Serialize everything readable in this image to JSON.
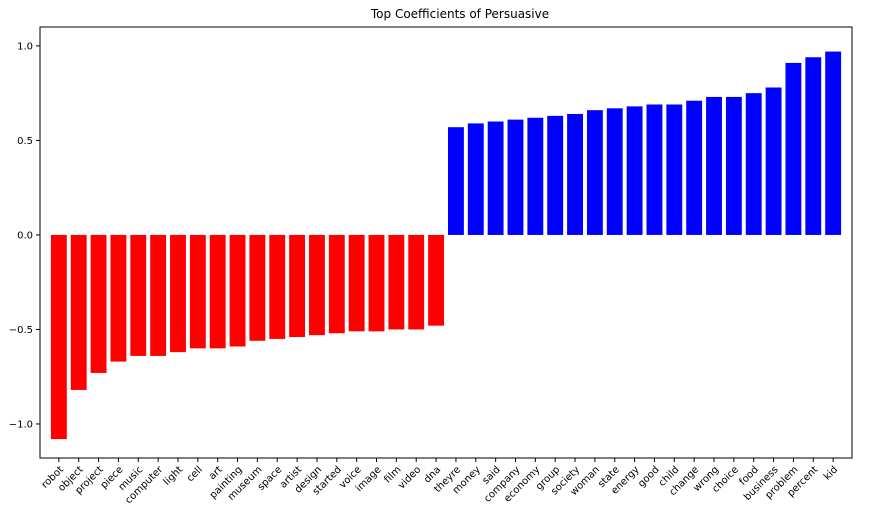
{
  "chart_data": {
    "type": "bar",
    "title": "Top Coefficients of Persuasive",
    "xlabel": "",
    "ylabel": "",
    "ylim": [
      -1.18,
      1.1
    ],
    "yticks": [
      -1.0,
      -0.5,
      0.0,
      0.5,
      1.0
    ],
    "ytick_labels": [
      "−1.0",
      "−0.5",
      "0.0",
      "0.5",
      "1.0"
    ],
    "grid": false,
    "colors": {
      "negative": "#ff0000",
      "positive": "#0000ff"
    },
    "categories": [
      "robot",
      "object",
      "project",
      "piece",
      "music",
      "computer",
      "light",
      "cell",
      "art",
      "painting",
      "museum",
      "space",
      "artist",
      "design",
      "started",
      "voice",
      "image",
      "film",
      "video",
      "dna",
      "theyre",
      "money",
      "said",
      "company",
      "economy",
      "group",
      "society",
      "woman",
      "state",
      "energy",
      "good",
      "child",
      "change",
      "wrong",
      "choice",
      "food",
      "business",
      "problem",
      "percent",
      "kid"
    ],
    "values": [
      -1.08,
      -0.82,
      -0.73,
      -0.67,
      -0.64,
      -0.64,
      -0.62,
      -0.6,
      -0.6,
      -0.59,
      -0.56,
      -0.55,
      -0.54,
      -0.53,
      -0.52,
      -0.51,
      -0.51,
      -0.5,
      -0.5,
      -0.48,
      0.57,
      0.59,
      0.6,
      0.61,
      0.62,
      0.63,
      0.64,
      0.66,
      0.67,
      0.68,
      0.69,
      0.69,
      0.71,
      0.73,
      0.73,
      0.75,
      0.78,
      0.91,
      0.94,
      0.97
    ]
  }
}
